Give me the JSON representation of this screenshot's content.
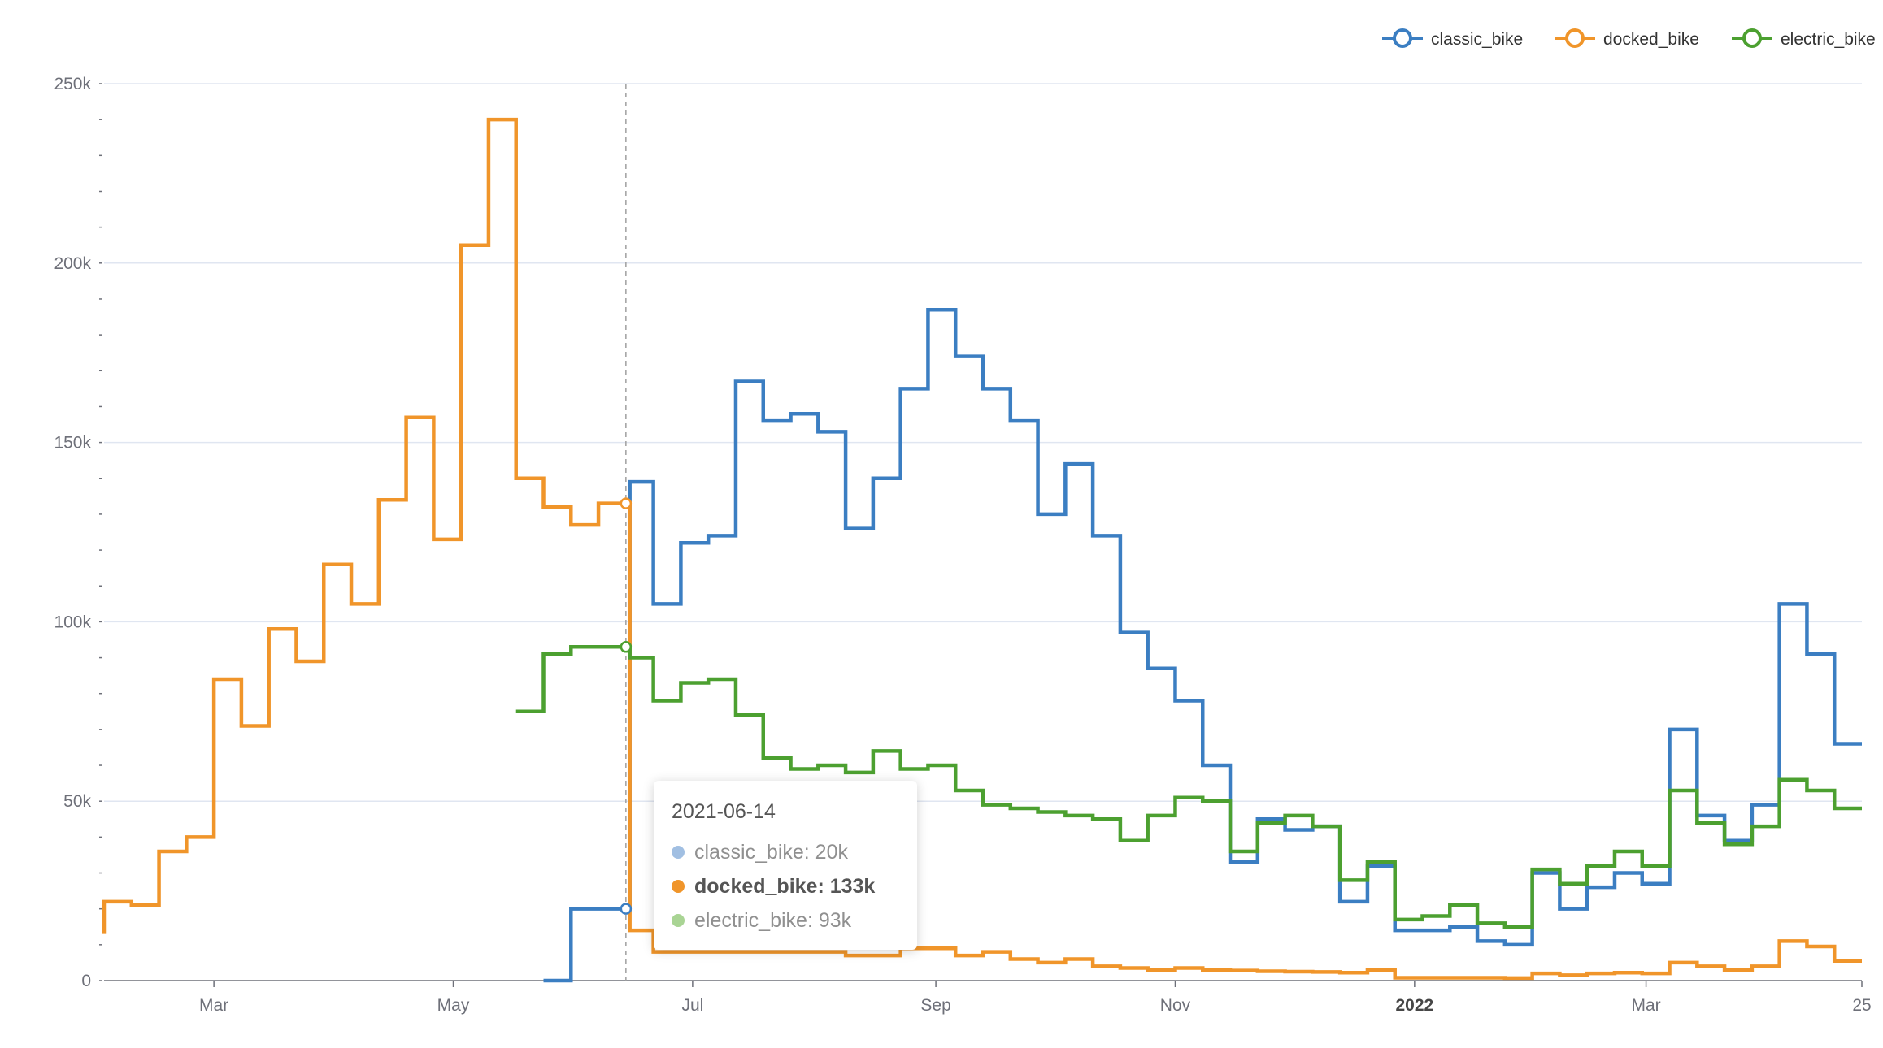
{
  "chart_data": {
    "type": "line",
    "step": true,
    "title": "",
    "legend_position": "top-right",
    "y_ticks": [
      "0",
      "50k",
      "100k",
      "150k",
      "200k",
      "250k"
    ],
    "x_ticks": [
      "Mar",
      "May",
      "Jul",
      "Sep",
      "Nov",
      "2022",
      "Mar",
      "25"
    ],
    "x_tick_dates": [
      "2021-03-01",
      "2021-05-01",
      "2021-07-01",
      "2021-09-01",
      "2021-11-01",
      "2022-01-01",
      "2022-03-01",
      "2022-04-25"
    ],
    "x_range": [
      "2021-02-01",
      "2022-04-25"
    ],
    "ylim": [
      0,
      250000
    ],
    "grid": true,
    "colors": {
      "classic_bike": "#3b7ec2",
      "docked_bike": "#f0952a",
      "electric_bike": "#4ca030"
    },
    "series": [
      {
        "name": "classic_bike",
        "points": [
          [
            "2021-05-24",
            0
          ],
          [
            "2021-05-31",
            20000
          ],
          [
            "2021-06-14",
            20000
          ],
          [
            "2021-06-15",
            139000
          ],
          [
            "2021-06-21",
            105000
          ],
          [
            "2021-06-28",
            122000
          ],
          [
            "2021-07-05",
            124000
          ],
          [
            "2021-07-12",
            167000
          ],
          [
            "2021-07-19",
            156000
          ],
          [
            "2021-07-26",
            158000
          ],
          [
            "2021-08-02",
            153000
          ],
          [
            "2021-08-09",
            126000
          ],
          [
            "2021-08-16",
            140000
          ],
          [
            "2021-08-23",
            165000
          ],
          [
            "2021-08-30",
            187000
          ],
          [
            "2021-09-06",
            174000
          ],
          [
            "2021-09-13",
            165000
          ],
          [
            "2021-09-20",
            156000
          ],
          [
            "2021-09-27",
            130000
          ],
          [
            "2021-10-04",
            144000
          ],
          [
            "2021-10-11",
            124000
          ],
          [
            "2021-10-18",
            97000
          ],
          [
            "2021-10-25",
            87000
          ],
          [
            "2021-11-01",
            78000
          ],
          [
            "2021-11-08",
            60000
          ],
          [
            "2021-11-15",
            33000
          ],
          [
            "2021-11-22",
            45000
          ],
          [
            "2021-11-29",
            42000
          ],
          [
            "2021-12-06",
            43000
          ],
          [
            "2021-12-13",
            22000
          ],
          [
            "2021-12-20",
            32000
          ],
          [
            "2021-12-27",
            14000
          ],
          [
            "2022-01-03",
            14000
          ],
          [
            "2022-01-10",
            15000
          ],
          [
            "2022-01-17",
            11000
          ],
          [
            "2022-01-24",
            10000
          ],
          [
            "2022-01-31",
            30000
          ],
          [
            "2022-02-07",
            20000
          ],
          [
            "2022-02-14",
            26000
          ],
          [
            "2022-02-21",
            30000
          ],
          [
            "2022-02-28",
            27000
          ],
          [
            "2022-03-07",
            70000
          ],
          [
            "2022-03-14",
            46000
          ],
          [
            "2022-03-21",
            39000
          ],
          [
            "2022-03-28",
            49000
          ],
          [
            "2022-04-04",
            105000
          ],
          [
            "2022-04-11",
            91000
          ],
          [
            "2022-04-18",
            66000
          ],
          [
            "2022-04-25",
            66000
          ]
        ]
      },
      {
        "name": "docked_bike",
        "points": [
          [
            "2021-02-01",
            13000
          ],
          [
            "2021-02-01",
            22000
          ],
          [
            "2021-02-08",
            21000
          ],
          [
            "2021-02-15",
            36000
          ],
          [
            "2021-02-22",
            40000
          ],
          [
            "2021-03-01",
            84000
          ],
          [
            "2021-03-08",
            71000
          ],
          [
            "2021-03-15",
            98000
          ],
          [
            "2021-03-22",
            89000
          ],
          [
            "2021-03-29",
            116000
          ],
          [
            "2021-04-05",
            105000
          ],
          [
            "2021-04-12",
            134000
          ],
          [
            "2021-04-19",
            157000
          ],
          [
            "2021-04-26",
            123000
          ],
          [
            "2021-05-03",
            205000
          ],
          [
            "2021-05-10",
            240000
          ],
          [
            "2021-05-17",
            140000
          ],
          [
            "2021-05-24",
            132000
          ],
          [
            "2021-05-31",
            127000
          ],
          [
            "2021-06-07",
            133000
          ],
          [
            "2021-06-14",
            133000
          ],
          [
            "2021-06-15",
            14000
          ],
          [
            "2021-06-21",
            8000
          ],
          [
            "2021-06-28",
            8000
          ],
          [
            "2021-07-05",
            8000
          ],
          [
            "2021-07-12",
            8000
          ],
          [
            "2021-07-19",
            8000
          ],
          [
            "2021-07-26",
            8000
          ],
          [
            "2021-08-02",
            8000
          ],
          [
            "2021-08-09",
            7000
          ],
          [
            "2021-08-16",
            7000
          ],
          [
            "2021-08-23",
            9000
          ],
          [
            "2021-08-30",
            9000
          ],
          [
            "2021-09-06",
            7000
          ],
          [
            "2021-09-13",
            8000
          ],
          [
            "2021-09-20",
            6000
          ],
          [
            "2021-09-27",
            5000
          ],
          [
            "2021-10-04",
            6000
          ],
          [
            "2021-10-11",
            4000
          ],
          [
            "2021-10-18",
            3500
          ],
          [
            "2021-10-25",
            3000
          ],
          [
            "2021-11-01",
            3500
          ],
          [
            "2021-11-08",
            3000
          ],
          [
            "2021-11-15",
            2800
          ],
          [
            "2021-11-22",
            2600
          ],
          [
            "2021-11-29",
            2500
          ],
          [
            "2021-12-06",
            2400
          ],
          [
            "2021-12-13",
            2200
          ],
          [
            "2021-12-20",
            3000
          ],
          [
            "2021-12-27",
            800
          ],
          [
            "2022-01-03",
            800
          ],
          [
            "2022-01-10",
            800
          ],
          [
            "2022-01-17",
            800
          ],
          [
            "2022-01-24",
            700
          ],
          [
            "2022-01-31",
            2000
          ],
          [
            "2022-02-07",
            1500
          ],
          [
            "2022-02-14",
            2000
          ],
          [
            "2022-02-21",
            2200
          ],
          [
            "2022-02-28",
            2000
          ],
          [
            "2022-03-07",
            5000
          ],
          [
            "2022-03-14",
            4000
          ],
          [
            "2022-03-21",
            3000
          ],
          [
            "2022-03-28",
            4000
          ],
          [
            "2022-04-04",
            11000
          ],
          [
            "2022-04-11",
            9500
          ],
          [
            "2022-04-18",
            5500
          ],
          [
            "2022-04-25",
            5500
          ]
        ]
      },
      {
        "name": "electric_bike",
        "points": [
          [
            "2021-05-17",
            75000
          ],
          [
            "2021-05-24",
            91000
          ],
          [
            "2021-05-31",
            93000
          ],
          [
            "2021-06-14",
            93000
          ],
          [
            "2021-06-15",
            90000
          ],
          [
            "2021-06-21",
            78000
          ],
          [
            "2021-06-28",
            83000
          ],
          [
            "2021-07-05",
            84000
          ],
          [
            "2021-07-12",
            74000
          ],
          [
            "2021-07-19",
            62000
          ],
          [
            "2021-07-26",
            59000
          ],
          [
            "2021-08-02",
            60000
          ],
          [
            "2021-08-09",
            58000
          ],
          [
            "2021-08-16",
            64000
          ],
          [
            "2021-08-23",
            59000
          ],
          [
            "2021-08-30",
            60000
          ],
          [
            "2021-09-06",
            53000
          ],
          [
            "2021-09-13",
            49000
          ],
          [
            "2021-09-20",
            48000
          ],
          [
            "2021-09-27",
            47000
          ],
          [
            "2021-10-04",
            46000
          ],
          [
            "2021-10-11",
            45000
          ],
          [
            "2021-10-18",
            39000
          ],
          [
            "2021-10-25",
            46000
          ],
          [
            "2021-11-01",
            51000
          ],
          [
            "2021-11-08",
            50000
          ],
          [
            "2021-11-15",
            36000
          ],
          [
            "2021-11-22",
            44000
          ],
          [
            "2021-11-29",
            46000
          ],
          [
            "2021-12-06",
            43000
          ],
          [
            "2021-12-13",
            28000
          ],
          [
            "2021-12-20",
            33000
          ],
          [
            "2021-12-27",
            17000
          ],
          [
            "2022-01-03",
            18000
          ],
          [
            "2022-01-10",
            21000
          ],
          [
            "2022-01-17",
            16000
          ],
          [
            "2022-01-24",
            15000
          ],
          [
            "2022-01-31",
            31000
          ],
          [
            "2022-02-07",
            27000
          ],
          [
            "2022-02-14",
            32000
          ],
          [
            "2022-02-21",
            36000
          ],
          [
            "2022-02-28",
            32000
          ],
          [
            "2022-03-07",
            53000
          ],
          [
            "2022-03-14",
            44000
          ],
          [
            "2022-03-21",
            38000
          ],
          [
            "2022-03-28",
            43000
          ],
          [
            "2022-04-04",
            56000
          ],
          [
            "2022-04-11",
            53000
          ],
          [
            "2022-04-18",
            48000
          ],
          [
            "2022-04-25",
            48000
          ]
        ]
      }
    ],
    "hover": {
      "date": "2021-06-14",
      "markers": {
        "classic_bike": 20000,
        "docked_bike": 133000,
        "electric_bike": 93000
      }
    }
  },
  "tooltip": {
    "title": "2021-06-14",
    "rows": [
      {
        "label": "classic_bike: 20k",
        "color": "#7ea7d8",
        "active": false
      },
      {
        "label": "docked_bike: 133k",
        "color": "#f0952a",
        "active": true
      },
      {
        "label": "electric_bike: 93k",
        "color": "#88c46b",
        "active": false
      }
    ]
  },
  "legend": {
    "items": [
      {
        "label": "classic_bike",
        "color": "#3b7ec2"
      },
      {
        "label": "docked_bike",
        "color": "#f0952a"
      },
      {
        "label": "electric_bike",
        "color": "#4ca030"
      }
    ]
  }
}
